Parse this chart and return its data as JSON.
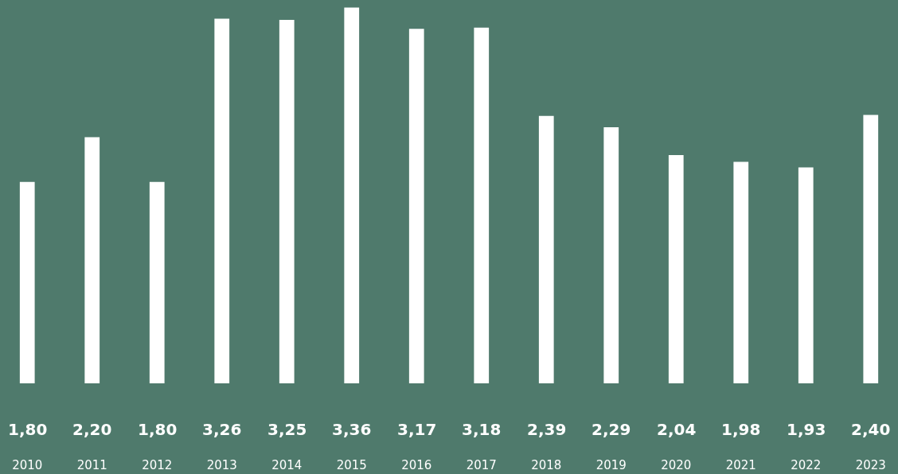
{
  "chart_data": {
    "type": "bar",
    "categories": [
      "2010",
      "2011",
      "2012",
      "2013",
      "2014",
      "2015",
      "2016",
      "2017",
      "2018",
      "2019",
      "2020",
      "2021",
      "2022",
      "2023"
    ],
    "values": [
      1.8,
      2.2,
      1.8,
      3.26,
      3.25,
      3.36,
      3.17,
      3.18,
      2.39,
      2.29,
      2.04,
      1.98,
      1.93,
      2.4
    ],
    "value_labels": [
      "1,80",
      "2,20",
      "1,80",
      "3,26",
      "3,25",
      "3,36",
      "3,17",
      "3,18",
      "2,39",
      "2,29",
      "2,04",
      "1,98",
      "1,93",
      "2,40"
    ],
    "color": "#ffffff",
    "grid": false,
    "legend": false
  }
}
